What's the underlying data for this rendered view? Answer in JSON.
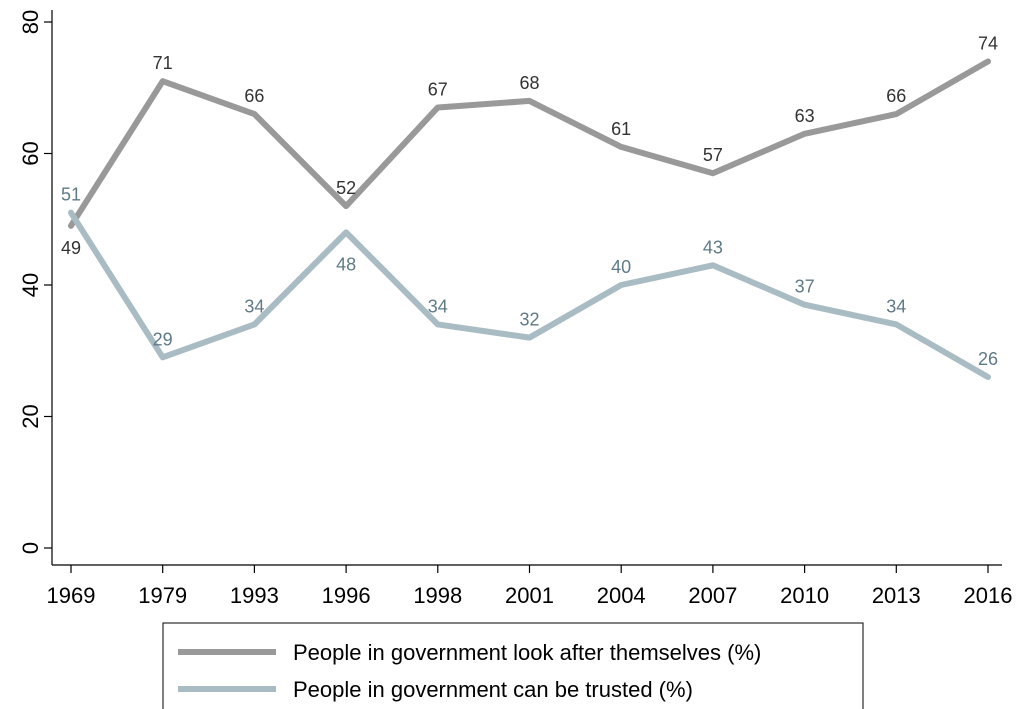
{
  "chart_data": {
    "type": "line",
    "categories": [
      "1969",
      "1979",
      "1993",
      "1996",
      "1998",
      "2001",
      "2004",
      "2007",
      "2010",
      "2013",
      "2016"
    ],
    "ylim": [
      0,
      80
    ],
    "yticks": [
      0,
      20,
      40,
      60,
      80
    ],
    "grid": false,
    "legend_position": "bottom",
    "title": "",
    "xlabel": "",
    "ylabel": "",
    "series": [
      {
        "name": "People in government look after themselves (%)",
        "color": "#999999",
        "label_color": "#333333",
        "values": [
          49,
          71,
          66,
          52,
          67,
          68,
          61,
          57,
          63,
          66,
          74
        ],
        "labels": [
          "49",
          "71",
          "66",
          "52",
          "67",
          "68",
          "61",
          "57",
          "63",
          "66",
          "74"
        ]
      },
      {
        "name": "People in government can be trusted (%)",
        "color": "#a9bcc4",
        "label_color": "#5f7a86",
        "values": [
          51,
          29,
          34,
          48,
          34,
          32,
          40,
          43,
          37,
          34,
          26
        ],
        "labels": [
          "51",
          "29",
          "34",
          "48",
          "34",
          "32",
          "40",
          "43",
          "37",
          "34",
          "26"
        ]
      }
    ]
  }
}
